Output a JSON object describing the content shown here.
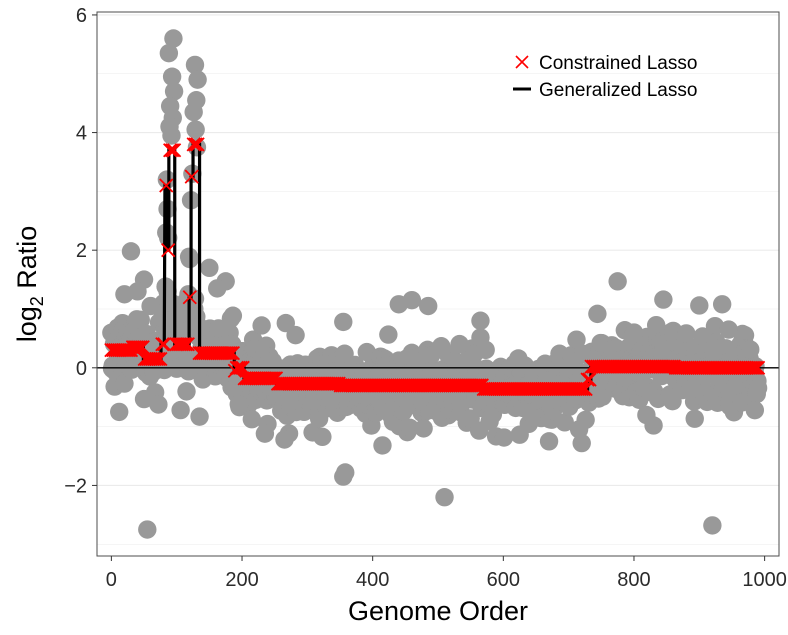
{
  "chart_data": {
    "type": "scatter",
    "xlabel": "Genome Order",
    "ylabel": "log2 Ratio",
    "ylabel_parts": {
      "base": "log",
      "subscript": "2",
      "rest": " Ratio"
    },
    "xlim": [
      -22,
      1022
    ],
    "ylim": [
      -3.2,
      6.05
    ],
    "x_ticks": [
      0,
      200,
      400,
      600,
      800,
      1000
    ],
    "x_tick_labels": [
      "0",
      "200",
      "400",
      "600",
      "800",
      "1000"
    ],
    "y_ticks": [
      -2,
      0,
      2,
      4,
      6
    ],
    "y_tick_labels": [
      "−2",
      "0",
      "2",
      "4",
      "6"
    ],
    "grid": true,
    "reference_line_y": 0,
    "legend": {
      "placement": "top-right",
      "entries": [
        {
          "label": "Constrained Lasso",
          "marker": "x",
          "color": "#ff0000"
        },
        {
          "label": "Generalized Lasso",
          "marker": "line",
          "color": "#000000"
        }
      ]
    },
    "colors": {
      "points": "#999999",
      "constrained": "#ff0000",
      "generalized": "#000000",
      "grid": "#ebebeb"
    },
    "segments": [
      {
        "x0": 0,
        "x1": 30,
        "y": 0.3
      },
      {
        "x0": 31,
        "x1": 48,
        "y": 0.35
      },
      {
        "x0": 49,
        "x1": 75,
        "y": 0.15
      },
      {
        "x0": 76,
        "x1": 80,
        "y": 0.4
      },
      {
        "x0": 82,
        "x1": 84,
        "y": 3.1
      },
      {
        "x0": 86,
        "x1": 87,
        "y": 2.0
      },
      {
        "x0": 88,
        "x1": 96,
        "y": 3.7
      },
      {
        "x0": 97,
        "x1": 118,
        "y": 0.4
      },
      {
        "x0": 119,
        "x1": 121,
        "y": 1.2
      },
      {
        "x0": 122,
        "x1": 124,
        "y": 3.25
      },
      {
        "x0": 125,
        "x1": 134,
        "y": 3.8
      },
      {
        "x0": 135,
        "x1": 187,
        "y": 0.25
      },
      {
        "x0": 188,
        "x1": 190,
        "y": -0.05
      },
      {
        "x0": 191,
        "x1": 202,
        "y": 0.0
      },
      {
        "x0": 203,
        "x1": 252,
        "y": -0.18
      },
      {
        "x0": 253,
        "x1": 348,
        "y": -0.27
      },
      {
        "x0": 349,
        "x1": 568,
        "y": -0.3
      },
      {
        "x0": 569,
        "x1": 728,
        "y": -0.36
      },
      {
        "x0": 729,
        "x1": 733,
        "y": -0.2
      },
      {
        "x0": 734,
        "x1": 862,
        "y": 0.02
      },
      {
        "x0": 863,
        "x1": 990,
        "y": 0.0
      }
    ],
    "outliers": [
      {
        "x": 55,
        "y": -2.75
      },
      {
        "x": 920,
        "y": -2.68
      },
      {
        "x": 510,
        "y": -2.2
      },
      {
        "x": 355,
        "y": -1.85
      },
      {
        "x": 358,
        "y": -1.78
      },
      {
        "x": 415,
        "y": -1.32
      },
      {
        "x": 830,
        "y": -0.98
      },
      {
        "x": 265,
        "y": -1.22
      },
      {
        "x": 235,
        "y": -1.12
      },
      {
        "x": 670,
        "y": -1.25
      },
      {
        "x": 720,
        "y": -1.28
      },
      {
        "x": 12,
        "y": -0.75
      },
      {
        "x": 135,
        "y": -0.83
      },
      {
        "x": 985,
        "y": -0.72
      },
      {
        "x": 195,
        "y": -0.62
      },
      {
        "x": 30,
        "y": 1.98
      },
      {
        "x": 50,
        "y": 1.5
      },
      {
        "x": 150,
        "y": 1.7
      },
      {
        "x": 175,
        "y": 1.47
      },
      {
        "x": 162,
        "y": 1.35
      },
      {
        "x": 775,
        "y": 1.47
      },
      {
        "x": 845,
        "y": 1.16
      },
      {
        "x": 460,
        "y": 1.15
      },
      {
        "x": 440,
        "y": 1.08
      },
      {
        "x": 900,
        "y": 1.06
      },
      {
        "x": 935,
        "y": 1.08
      },
      {
        "x": 485,
        "y": 1.05
      },
      {
        "x": 355,
        "y": 0.78
      },
      {
        "x": 565,
        "y": 0.8
      },
      {
        "x": 230,
        "y": 0.72
      },
      {
        "x": 800,
        "y": 0.6
      },
      {
        "x": 945,
        "y": 0.65
      },
      {
        "x": 95,
        "y": 5.6
      },
      {
        "x": 88,
        "y": 5.35
      },
      {
        "x": 93,
        "y": 4.95
      },
      {
        "x": 96,
        "y": 4.7
      },
      {
        "x": 90,
        "y": 4.45
      },
      {
        "x": 94,
        "y": 4.25
      },
      {
        "x": 89,
        "y": 4.1
      },
      {
        "x": 92,
        "y": 3.95
      },
      {
        "x": 85,
        "y": 3.2
      },
      {
        "x": 86,
        "y": 2.7
      },
      {
        "x": 84,
        "y": 2.3
      },
      {
        "x": 128,
        "y": 5.15
      },
      {
        "x": 132,
        "y": 4.9
      },
      {
        "x": 130,
        "y": 4.55
      },
      {
        "x": 126,
        "y": 4.35
      },
      {
        "x": 129,
        "y": 4.05
      },
      {
        "x": 131,
        "y": 3.75
      },
      {
        "x": 124,
        "y": 3.3
      },
      {
        "x": 122,
        "y": 2.85
      },
      {
        "x": 120,
        "y": 1.85
      },
      {
        "x": 118,
        "y": 1.25
      },
      {
        "x": 100,
        "y": 1.05
      },
      {
        "x": 107,
        "y": 0.92
      },
      {
        "x": 80,
        "y": 1.1
      },
      {
        "x": 20,
        "y": 1.25
      },
      {
        "x": 40,
        "y": 1.3
      },
      {
        "x": 60,
        "y": 1.05
      }
    ],
    "series": [
      {
        "name": "Constrained Lasso"
      },
      {
        "name": "Generalized Lasso"
      }
    ]
  }
}
